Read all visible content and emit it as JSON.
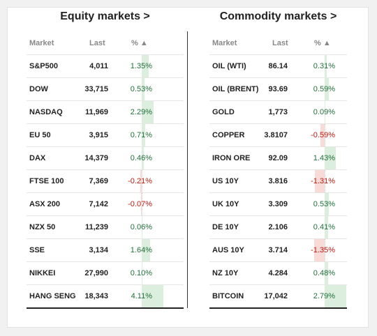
{
  "equity": {
    "title": "Equity markets >",
    "headers": {
      "market": "Market",
      "last": "Last",
      "pct": "% ▲"
    },
    "rows": [
      {
        "name": "S&P500",
        "last": "4,011",
        "pct": "1.35%",
        "value": 1.35
      },
      {
        "name": "DOW",
        "last": "33,715",
        "pct": "0.53%",
        "value": 0.53
      },
      {
        "name": "NASDAQ",
        "last": "11,969",
        "pct": "2.29%",
        "value": 2.29
      },
      {
        "name": "EU 50",
        "last": "3,915",
        "pct": "0.71%",
        "value": 0.71
      },
      {
        "name": "DAX",
        "last": "14,379",
        "pct": "0.46%",
        "value": 0.46
      },
      {
        "name": "FTSE 100",
        "last": "7,369",
        "pct": "-0.21%",
        "value": -0.21
      },
      {
        "name": "ASX 200",
        "last": "7,142",
        "pct": "-0.07%",
        "value": -0.07
      },
      {
        "name": "NZX 50",
        "last": "11,239",
        "pct": "0.06%",
        "value": 0.06
      },
      {
        "name": "SSE",
        "last": "3,134",
        "pct": "1.64%",
        "value": 1.64
      },
      {
        "name": "NIKKEI",
        "last": "27,990",
        "pct": "0.10%",
        "value": 0.1
      },
      {
        "name": "HANG SENG",
        "last": "18,343",
        "pct": "4.11%",
        "value": 4.11
      }
    ]
  },
  "commodity": {
    "title": "Commodity markets >",
    "headers": {
      "market": "Market",
      "last": "Last",
      "pct": "% ▲"
    },
    "rows": [
      {
        "name": "OIL (WTI)",
        "last": "86.14",
        "pct": "0.31%",
        "value": 0.31
      },
      {
        "name": "OIL (BRENT)",
        "last": "93.69",
        "pct": "0.59%",
        "value": 0.59
      },
      {
        "name": "GOLD",
        "last": "1,773",
        "pct": "0.09%",
        "value": 0.09
      },
      {
        "name": "COPPER",
        "last": "3.8107",
        "pct": "-0.59%",
        "value": -0.59
      },
      {
        "name": "IRON ORE",
        "last": "92.09",
        "pct": "1.43%",
        "value": 1.43
      },
      {
        "name": "US 10Y",
        "last": "3.816",
        "pct": "-1.31%",
        "value": -1.31
      },
      {
        "name": "UK 10Y",
        "last": "3.309",
        "pct": "0.53%",
        "value": 0.53
      },
      {
        "name": "DE 10Y",
        "last": "2.106",
        "pct": "0.41%",
        "value": 0.41
      },
      {
        "name": "AUS 10Y",
        "last": "3.714",
        "pct": "-1.35%",
        "value": -1.35
      },
      {
        "name": "NZ 10Y",
        "last": "4.284",
        "pct": "0.48%",
        "value": 0.48
      },
      {
        "name": "BITCOIN",
        "last": "17,042",
        "pct": "2.79%",
        "value": 2.79
      }
    ]
  },
  "colors": {
    "positive_text": "#1f6f3a",
    "negative_text": "#c0180f",
    "positive_bar": "#dceedd",
    "negative_bar": "#f8dbd6"
  }
}
